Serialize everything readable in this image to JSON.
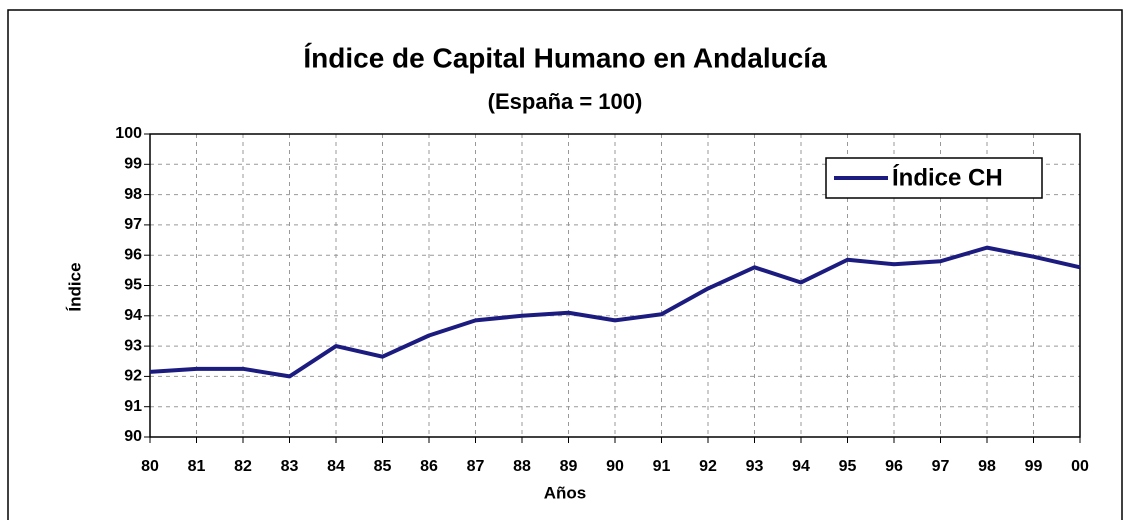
{
  "chart_data": {
    "type": "line",
    "title": "Índice de Capital Humano en Andalucía",
    "subtitle": "(España = 100)",
    "x_label": "Años",
    "y_label": "Índice",
    "categories": [
      "80",
      "81",
      "82",
      "83",
      "84",
      "85",
      "86",
      "87",
      "88",
      "89",
      "90",
      "91",
      "92",
      "93",
      "94",
      "95",
      "96",
      "97",
      "98",
      "99",
      "00"
    ],
    "series": [
      {
        "name": "Índice CH",
        "color": "#1c1c80",
        "values": [
          92.15,
          92.25,
          92.25,
          92.0,
          93.0,
          92.65,
          93.35,
          93.85,
          94.0,
          94.1,
          93.85,
          94.05,
          94.9,
          95.6,
          95.1,
          95.85,
          95.7,
          95.8,
          96.25,
          95.95,
          95.6
        ]
      }
    ],
    "ylim": [
      90,
      100
    ],
    "yticks": [
      90,
      91,
      92,
      93,
      94,
      95,
      96,
      97,
      98,
      99,
      100
    ],
    "grid": true,
    "legend": "upper right"
  }
}
